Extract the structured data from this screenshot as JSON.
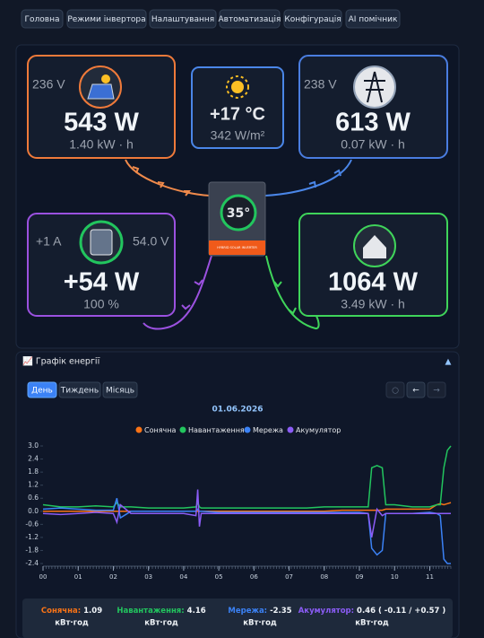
{
  "nav": [
    "Головна",
    "Режими інвертора",
    "Налаштування",
    "Автоматизація",
    "Конфігурація",
    "AI помічник"
  ],
  "flow": {
    "solar": {
      "voltage": "236 V",
      "power": "543 W",
      "energy": "1.40 kW · h"
    },
    "weather": {
      "temperature": "+17 °C",
      "irradiance": "342 W/m²"
    },
    "grid": {
      "voltage": "238 V",
      "power": "613 W",
      "energy": "0.07 kW · h"
    },
    "battery": {
      "current": "+1 A",
      "voltage": "54.0 V",
      "power": "+54 W",
      "charge": "100 %"
    },
    "load": {
      "power": "1064 W",
      "energy": "3.49 kW · h"
    },
    "inverter": {
      "temperature": "35°",
      "label": "HYBRID SOLAR INVERTER"
    }
  },
  "chart_section": {
    "toggle": "▲",
    "periods": [
      "День",
      "Тиждень",
      "Місяць"
    ],
    "nav": [
      "○",
      "←",
      "→"
    ]
  },
  "chart_data": {
    "type": "line",
    "title": "📈 Графік енергії",
    "subtitle": "01.06.2026",
    "x": [
      0,
      0.5,
      1,
      1.5,
      2,
      2.1,
      2.2,
      2.5,
      3,
      3.5,
      4,
      4.35,
      4.4,
      4.45,
      4.5,
      5,
      5.5,
      6,
      6.5,
      7,
      7.5,
      8,
      8.5,
      9,
      9.25,
      9.35,
      9.5,
      9.65,
      9.75,
      10,
      10.5,
      11,
      11.2,
      11.3,
      11.4,
      11.5,
      11.6
    ],
    "series": [
      {
        "name": "Сонячна",
        "color": "#f97316",
        "values": [
          0,
          0,
          0,
          0,
          0,
          0,
          0,
          0,
          0,
          0,
          0,
          0,
          0,
          0,
          0,
          0,
          0,
          0,
          0,
          0,
          0,
          0,
          0.05,
          0.05,
          0.05,
          0.05,
          0.05,
          0.05,
          0.1,
          0.1,
          0.1,
          0.1,
          0.3,
          0.35,
          0.3,
          0.35,
          0.4
        ]
      },
      {
        "name": "Навантаження",
        "color": "#22c55e",
        "values": [
          0.3,
          0.2,
          0.2,
          0.25,
          0.2,
          0.4,
          0.2,
          0.2,
          0.15,
          0.15,
          0.15,
          0.2,
          0.4,
          0.2,
          0.15,
          0.15,
          0.15,
          0.15,
          0.15,
          0.15,
          0.15,
          0.2,
          0.2,
          0.2,
          0.2,
          2.0,
          2.1,
          2.0,
          0.3,
          0.3,
          0.2,
          0.2,
          0.3,
          0.3,
          2.0,
          2.8,
          3.0
        ]
      },
      {
        "name": "Мережа",
        "color": "#3b82f6",
        "values": [
          0.1,
          0.15,
          0.1,
          0.05,
          0.05,
          0.6,
          -0.3,
          0,
          0,
          0,
          0,
          0,
          0.1,
          0,
          0,
          -0.05,
          -0.05,
          -0.05,
          -0.05,
          -0.05,
          -0.05,
          -0.05,
          -0.05,
          -0.05,
          -0.1,
          -1.7,
          -2.0,
          -1.8,
          -0.1,
          -0.1,
          -0.1,
          -0.05,
          -0.1,
          -0.2,
          -2.2,
          -2.4,
          -2.4
        ]
      },
      {
        "name": "Акумулятор",
        "color": "#8b5cf6",
        "values": [
          -0.1,
          -0.15,
          -0.1,
          -0.05,
          -0.1,
          -0.5,
          0.3,
          -0.1,
          -0.1,
          -0.1,
          -0.1,
          -0.2,
          1.0,
          -0.7,
          -0.1,
          -0.1,
          -0.1,
          -0.1,
          -0.1,
          -0.1,
          -0.1,
          -0.1,
          -0.1,
          -0.1,
          -0.1,
          -1.2,
          0.1,
          -0.2,
          -0.1,
          -0.1,
          -0.1,
          -0.1,
          -0.1,
          -0.1,
          -0.1,
          -0.1,
          -0.1
        ]
      }
    ],
    "xlim": [
      0,
      11.6
    ],
    "xticks": [
      {
        "value": 0,
        "label": "00"
      },
      {
        "value": 1,
        "label": "01"
      },
      {
        "value": 2,
        "label": "02"
      },
      {
        "value": 3,
        "label": "03"
      },
      {
        "value": 4,
        "label": "04"
      },
      {
        "value": 5,
        "label": "05"
      },
      {
        "value": 6,
        "label": "06"
      },
      {
        "value": 7,
        "label": "07"
      },
      {
        "value": 8,
        "label": "08"
      },
      {
        "value": 9,
        "label": "09"
      },
      {
        "value": 10,
        "label": "10"
      },
      {
        "value": 11,
        "label": "11"
      }
    ],
    "ylim": [
      -2.4,
      3.0
    ],
    "yticks": [
      {
        "value": 3,
        "label": "3.0"
      },
      2.4,
      1.8,
      1.2,
      0.6,
      {
        "value": 0,
        "label": "0.0"
      },
      -0.6,
      -1.2,
      -1.8,
      -2.4
    ],
    "grid": false
  },
  "summary": [
    {
      "label": "Сонячна:",
      "value": "1.09",
      "unit": "кВт·год"
    },
    {
      "label": "Навантаження:",
      "value": "4.16",
      "unit": "кВт·год"
    },
    {
      "label": "Мережа:",
      "value": "-2.35",
      "unit": "кВт·год"
    },
    {
      "label": "Акумулятор:",
      "value": "0.46 ( -0.11 / +0.57 )",
      "unit": "кВт·год"
    }
  ]
}
